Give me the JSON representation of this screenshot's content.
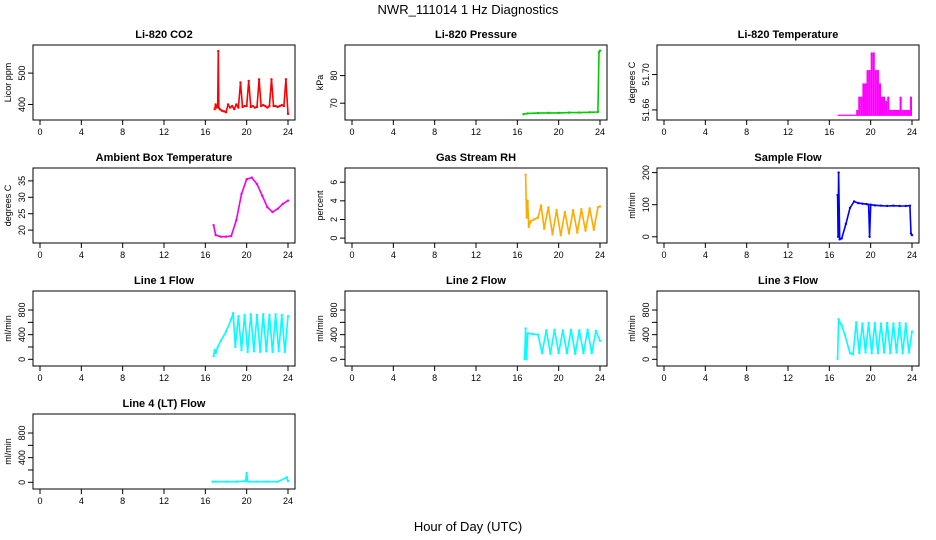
{
  "page": {
    "title": "NWR_111014  1 Hz Diagnostics",
    "xlabel": "Hour of Day (UTC)"
  },
  "chart_data": [
    {
      "type": "line",
      "title": "Li-820 CO2",
      "ylabel": "Licor ppm",
      "color": "#ff0000",
      "xlim": [
        0,
        24
      ],
      "ylim": [
        360,
        580
      ],
      "xticks": [
        0,
        4,
        8,
        12,
        16,
        20,
        24
      ],
      "yticks": [
        400,
        500
      ],
      "x": [
        16.9,
        17.0,
        17.1,
        17.2,
        17.25,
        17.3,
        17.4,
        17.6,
        17.8,
        18.0,
        18.2,
        18.4,
        18.6,
        18.8,
        19.0,
        19.2,
        19.4,
        19.6,
        19.8,
        20.0,
        20.2,
        20.4,
        20.6,
        20.8,
        21.0,
        21.2,
        21.4,
        21.6,
        21.8,
        22.0,
        22.2,
        22.4,
        22.6,
        22.8,
        23.0,
        23.2,
        23.4,
        23.6,
        23.8,
        24.0
      ],
      "y": [
        385,
        400,
        390,
        395,
        570,
        390,
        385,
        380,
        378,
        375,
        400,
        390,
        395,
        385,
        400,
        390,
        470,
        392,
        395,
        395,
        475,
        392,
        395,
        390,
        392,
        480,
        395,
        398,
        395,
        390,
        395,
        480,
        395,
        395,
        392,
        395,
        398,
        395,
        480,
        370
      ]
    },
    {
      "type": "line",
      "title": "Li-820 Pressure",
      "ylabel": "kPa",
      "color": "#00cc00",
      "xlim": [
        0,
        24
      ],
      "ylim": [
        65,
        90
      ],
      "xticks": [
        0,
        4,
        8,
        12,
        16,
        20,
        24
      ],
      "yticks": [
        70,
        80
      ],
      "x": [
        16.6,
        17.0,
        18.0,
        19.0,
        20.0,
        21.0,
        22.0,
        23.0,
        23.8,
        23.9,
        24.0
      ],
      "y": [
        66.0,
        66.3,
        66.4,
        66.5,
        66.5,
        66.6,
        66.6,
        66.7,
        66.8,
        88.5,
        89.0
      ]
    },
    {
      "type": "bar",
      "title": "Li-820 Temperature",
      "ylabel": "degrees C",
      "color": "#ff00ff",
      "xlim": [
        0,
        24
      ],
      "ylim": [
        51.652,
        51.73
      ],
      "xticks": [
        0,
        4,
        8,
        12,
        16,
        20,
        24
      ],
      "yticks": [
        51.66,
        51.7
      ],
      "ytick_labels": [
        "51.66",
        "51.70"
      ],
      "baseline": 51.654,
      "x": [
        18.6,
        18.8,
        19.0,
        19.2,
        19.4,
        19.6,
        19.8,
        20.0,
        20.2,
        20.4,
        20.6,
        20.8,
        21.0,
        21.2,
        21.4,
        21.6,
        21.8,
        22.0,
        22.2,
        22.4,
        22.6,
        22.8,
        23.0,
        23.2,
        23.4,
        23.6,
        23.8
      ],
      "y": [
        51.66,
        51.675,
        51.675,
        51.69,
        51.69,
        51.705,
        51.705,
        51.725,
        51.725,
        51.705,
        51.705,
        51.69,
        51.675,
        51.675,
        51.67,
        51.675,
        51.66,
        51.66,
        51.66,
        51.66,
        51.66,
        51.675,
        51.66,
        51.66,
        51.66,
        51.66,
        51.675
      ]
    },
    {
      "type": "line",
      "title": "Ambient Box Temperature",
      "ylabel": "degrees C",
      "color": "#ee00ee",
      "xlim": [
        0,
        24
      ],
      "ylim": [
        17,
        38
      ],
      "xticks": [
        0,
        4,
        8,
        12,
        16,
        20,
        24
      ],
      "yticks": [
        20,
        25,
        30,
        35
      ],
      "x": [
        16.8,
        17.0,
        17.5,
        18.0,
        18.5,
        19.0,
        19.5,
        20.0,
        20.5,
        21.0,
        21.5,
        22.0,
        22.5,
        23.0,
        23.5,
        24.0
      ],
      "y": [
        21.5,
        18.5,
        18.0,
        18.0,
        18.2,
        23.0,
        31.0,
        35.5,
        36.0,
        34.0,
        30.5,
        27.0,
        25.5,
        26.5,
        28.0,
        29.0
      ]
    },
    {
      "type": "line",
      "title": "Gas Stream RH",
      "ylabel": "percent",
      "color": "#ffaa00",
      "xlim": [
        0,
        24
      ],
      "ylim": [
        -0.2,
        7.2
      ],
      "xticks": [
        0,
        4,
        8,
        12,
        16,
        20,
        24
      ],
      "yticks": [
        0,
        2,
        4,
        6
      ],
      "x": [
        16.8,
        16.9,
        17.0,
        17.1,
        17.3,
        17.6,
        18.0,
        18.3,
        18.6,
        19.0,
        19.4,
        19.8,
        20.2,
        20.6,
        21.0,
        21.4,
        21.8,
        22.2,
        22.6,
        23.0,
        23.4,
        23.8,
        24.0
      ],
      "y": [
        6.8,
        2.2,
        4.0,
        1.2,
        1.8,
        2.0,
        2.2,
        3.5,
        1.0,
        3.3,
        0.4,
        3.0,
        0.3,
        2.8,
        0.5,
        3.0,
        0.6,
        3.1,
        0.8,
        3.2,
        0.9,
        3.3,
        3.4
      ]
    },
    {
      "type": "line",
      "title": "Sample Flow",
      "ylabel": "ml/min",
      "color": "#0000ff",
      "xlim": [
        0,
        24
      ],
      "ylim": [
        -10,
        205
      ],
      "xticks": [
        0,
        4,
        8,
        12,
        16,
        20,
        24
      ],
      "yticks": [
        0,
        100,
        200
      ],
      "x": [
        16.8,
        16.85,
        16.9,
        17.0,
        17.2,
        17.6,
        18.0,
        18.4,
        18.8,
        19.2,
        19.6,
        19.8,
        19.9,
        20.0,
        20.4,
        21.0,
        21.6,
        22.2,
        22.8,
        23.4,
        23.8,
        23.9,
        24.0
      ],
      "y": [
        130,
        0,
        200,
        -8,
        -5,
        40,
        90,
        110,
        105,
        103,
        102,
        100,
        0,
        100,
        98,
        97,
        96,
        97,
        96,
        96,
        97,
        10,
        5
      ]
    },
    {
      "type": "line",
      "title": "Line 1 Flow",
      "ylabel": "ml/min",
      "color": "#00ffff",
      "xlim": [
        0,
        24
      ],
      "ylim": [
        -60,
        1060
      ],
      "xticks": [
        0,
        4,
        8,
        12,
        16,
        20,
        24
      ],
      "yticks": [
        0,
        200,
        400,
        600,
        800
      ],
      "ytick_labels": [
        "0",
        "",
        "400",
        "",
        "800"
      ],
      "x": [
        16.8,
        16.9,
        17.0,
        17.2,
        17.5,
        18.0,
        18.5,
        18.7,
        18.9,
        19.2,
        19.5,
        19.8,
        20.1,
        20.4,
        20.7,
        21.0,
        21.3,
        21.6,
        21.9,
        22.2,
        22.5,
        22.8,
        23.1,
        23.4,
        23.7,
        24.0
      ],
      "y": [
        50,
        150,
        100,
        200,
        300,
        450,
        650,
        750,
        200,
        700,
        150,
        720,
        120,
        730,
        130,
        720,
        120,
        730,
        130,
        720,
        120,
        730,
        130,
        720,
        120,
        700
      ]
    },
    {
      "type": "line",
      "title": "Line 2 Flow",
      "ylabel": "ml/min",
      "color": "#00ffff",
      "xlim": [
        0,
        24
      ],
      "ylim": [
        -60,
        1060
      ],
      "xticks": [
        0,
        4,
        8,
        12,
        16,
        20,
        24
      ],
      "yticks": [
        0,
        200,
        400,
        600,
        800
      ],
      "ytick_labels": [
        "0",
        "",
        "400",
        "",
        "800"
      ],
      "x": [
        16.7,
        16.8,
        16.9,
        17.0,
        17.5,
        18.0,
        18.4,
        18.8,
        19.2,
        19.6,
        20.0,
        20.4,
        20.8,
        21.2,
        21.6,
        22.0,
        22.4,
        22.8,
        23.2,
        23.6,
        24.0
      ],
      "y": [
        0,
        500,
        10,
        420,
        410,
        400,
        100,
        470,
        90,
        480,
        100,
        470,
        100,
        480,
        90,
        470,
        100,
        480,
        100,
        460,
        300
      ]
    },
    {
      "type": "line",
      "title": "Line 3 Flow",
      "ylabel": "ml/min",
      "color": "#00ffff",
      "xlim": [
        0,
        24
      ],
      "ylim": [
        -60,
        1060
      ],
      "xticks": [
        0,
        4,
        8,
        12,
        16,
        20,
        24
      ],
      "yticks": [
        0,
        200,
        400,
        600,
        800
      ],
      "ytick_labels": [
        "0",
        "",
        "400",
        "",
        "800"
      ],
      "x": [
        16.8,
        16.9,
        17.0,
        17.2,
        17.5,
        18.0,
        18.3,
        18.6,
        18.9,
        19.2,
        19.5,
        19.8,
        20.1,
        20.4,
        20.7,
        21.0,
        21.3,
        21.6,
        21.9,
        22.2,
        22.5,
        22.8,
        23.1,
        23.4,
        23.7,
        24.0
      ],
      "y": [
        10,
        650,
        600,
        550,
        400,
        100,
        80,
        600,
        100,
        580,
        110,
        590,
        100,
        590,
        100,
        580,
        110,
        590,
        100,
        580,
        110,
        590,
        100,
        580,
        110,
        450
      ]
    },
    {
      "type": "line",
      "title": "Line 4 (LT) Flow",
      "ylabel": "ml/min",
      "color": "#00ffff",
      "xlim": [
        0,
        24
      ],
      "ylim": [
        -60,
        1060
      ],
      "xticks": [
        0,
        4,
        8,
        12,
        16,
        20,
        24
      ],
      "yticks": [
        0,
        200,
        400,
        600,
        800
      ],
      "ytick_labels": [
        "0",
        "",
        "400",
        "",
        "800"
      ],
      "x": [
        16.7,
        17.0,
        18.0,
        19.0,
        19.9,
        20.0,
        20.1,
        21.0,
        22.0,
        23.0,
        23.9,
        24.0
      ],
      "y": [
        10,
        10,
        10,
        10,
        20,
        150,
        10,
        10,
        10,
        10,
        80,
        20
      ]
    }
  ]
}
